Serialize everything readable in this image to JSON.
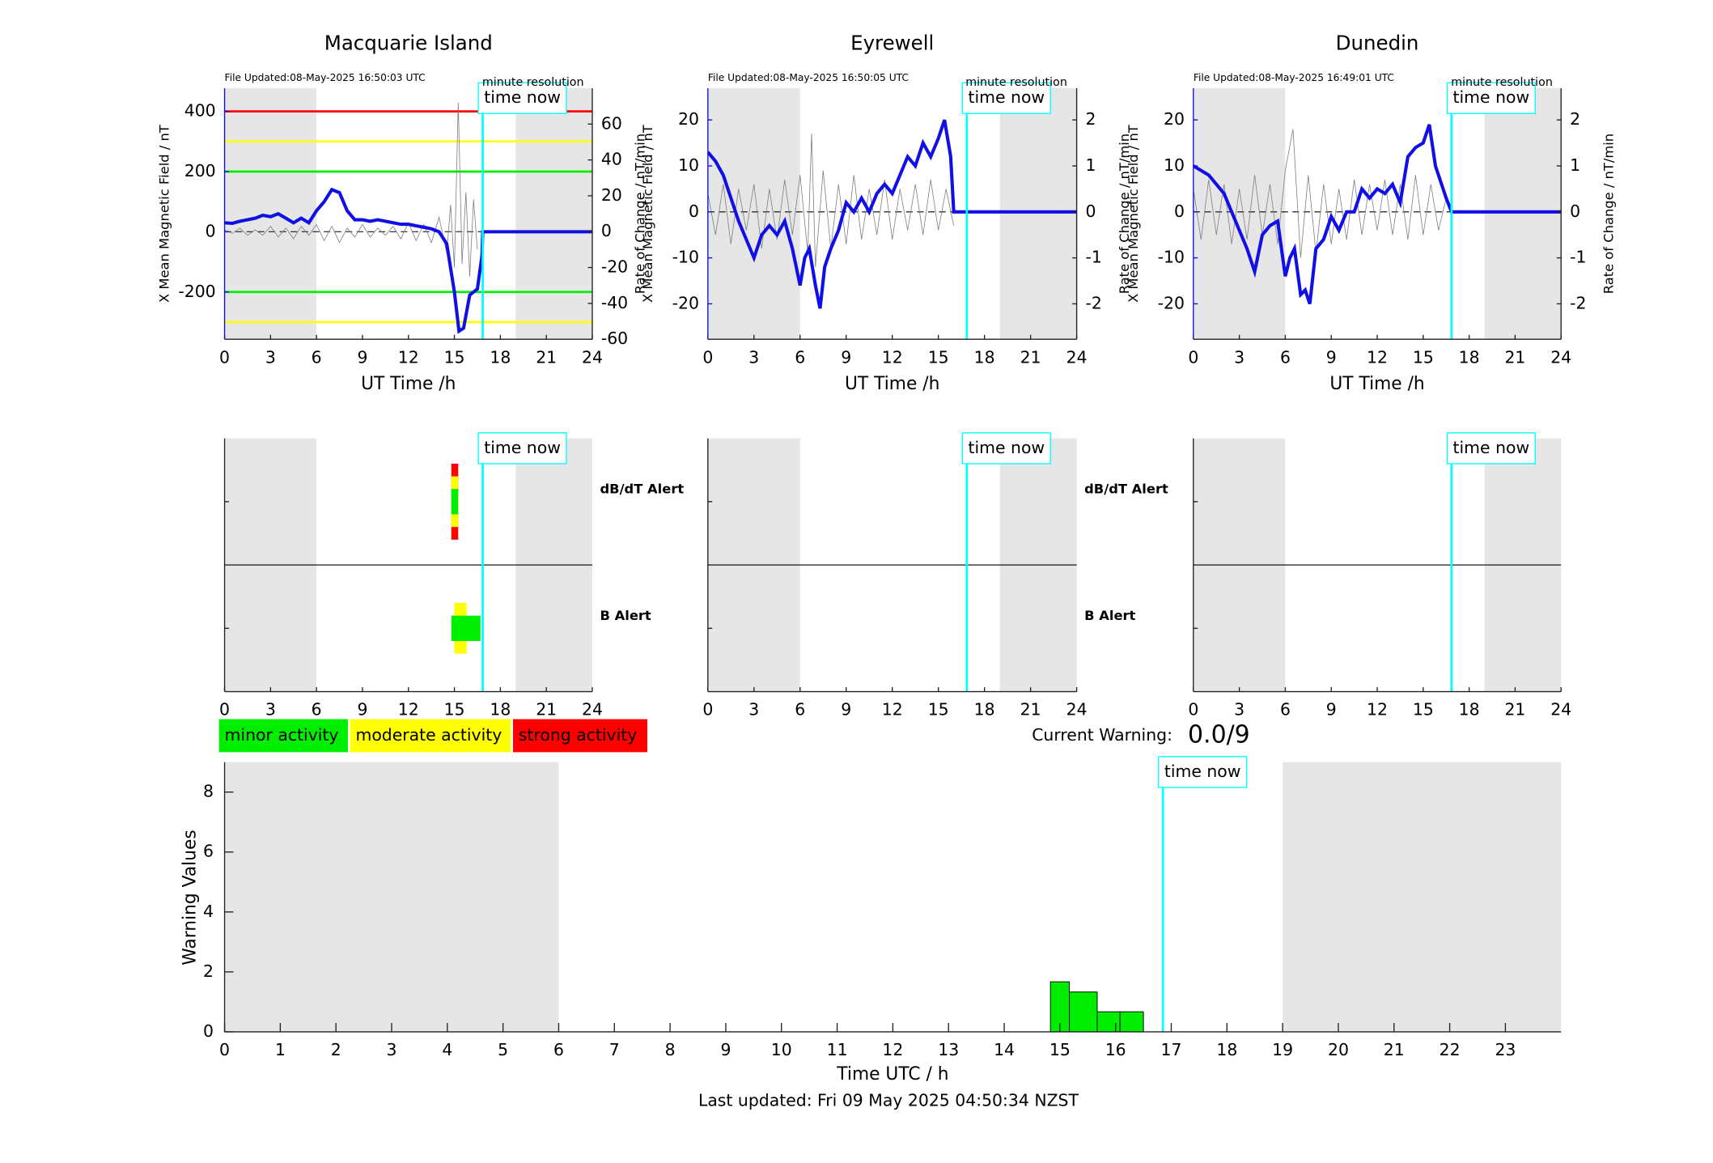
{
  "chart_data": [
    {
      "type": "line",
      "title": "Macquarie Island",
      "subtitle": "File Updated:08-May-2025 16:50:03 UTC",
      "note": "minute resolution",
      "annotation": "time now",
      "time_now": 16.85,
      "xlabel": "UT Time /h",
      "ylabel": "X Mean Magnetic Field / nT",
      "y2label": "Rate of Change / nT/min",
      "xlim": [
        0,
        24
      ],
      "xticks": [
        0,
        3,
        6,
        9,
        12,
        15,
        18,
        21,
        24
      ],
      "ylim": [
        -357,
        477
      ],
      "yticks": [
        -200,
        0,
        200,
        400
      ],
      "y2lim": [
        -60,
        80
      ],
      "y2ticks": [
        -60,
        -40,
        -20,
        0,
        20,
        40,
        60
      ],
      "shaded": [
        [
          0,
          6
        ],
        [
          19,
          24
        ]
      ],
      "reference_line": 0,
      "thresholds": [
        {
          "value": 400,
          "color": "#ff0000"
        },
        {
          "value": 300,
          "color": "#ffff00"
        },
        {
          "value": 200,
          "color": "#00ee00"
        },
        {
          "value": -200,
          "color": "#00ee00"
        },
        {
          "value": -300,
          "color": "#ffff00"
        }
      ],
      "series": [
        {
          "color": "#808080",
          "axis": "y2",
          "x": [
            0,
            0.5,
            1,
            1.5,
            2,
            2.5,
            3,
            3.5,
            4,
            4.5,
            5,
            5.5,
            6,
            6.5,
            7,
            7.5,
            8,
            8.5,
            9,
            9.5,
            10,
            10.5,
            11,
            11.5,
            12,
            12.5,
            13,
            13.5,
            14,
            14.5,
            14.75,
            15,
            15.25,
            15.5,
            15.75,
            16,
            16.25,
            16.5
          ],
          "values": [
            1,
            -1,
            2,
            -2,
            1,
            -2,
            3,
            -3,
            2,
            -4,
            3,
            -2,
            4,
            -5,
            3,
            -6,
            2,
            -3,
            4,
            -3,
            2,
            -2,
            3,
            -4,
            5,
            -5,
            4,
            -6,
            8,
            -12,
            15,
            -20,
            72,
            -18,
            22,
            -25,
            18,
            -10
          ]
        },
        {
          "color": "#1010e6",
          "axis": "y",
          "x": [
            0,
            0.5,
            1,
            1.5,
            2,
            2.5,
            3,
            3.5,
            4,
            4.5,
            5,
            5.5,
            6,
            6.5,
            7,
            7.5,
            8,
            8.5,
            9,
            9.5,
            10,
            10.5,
            11,
            11.5,
            12,
            12.5,
            13,
            13.5,
            14,
            14.5,
            15,
            15.3,
            15.6,
            16,
            16.5,
            16.8,
            16.85,
            24
          ],
          "values": [
            30,
            28,
            35,
            40,
            45,
            55,
            50,
            60,
            45,
            30,
            45,
            30,
            70,
            100,
            140,
            130,
            70,
            40,
            40,
            35,
            40,
            35,
            30,
            25,
            25,
            20,
            15,
            10,
            0,
            -40,
            -200,
            -330,
            -320,
            -210,
            -190,
            -80,
            0,
            0
          ]
        }
      ]
    },
    {
      "type": "line",
      "title": "Eyrewell",
      "subtitle": "File Updated:08-May-2025 16:50:05 UTC",
      "note": "minute resolution",
      "annotation": "time now",
      "time_now": 16.85,
      "xlabel": "UT Time /h",
      "ylabel": "X Mean Magnetic Field / nT",
      "y2label": "Rate of Change / nT/min",
      "xlim": [
        0,
        24
      ],
      "xticks": [
        0,
        3,
        6,
        9,
        12,
        15,
        18,
        21,
        24
      ],
      "ylim": [
        -27.7,
        26.9
      ],
      "yticks": [
        -20,
        -10,
        0,
        10,
        20
      ],
      "y2lim": [
        -2.77,
        2.69
      ],
      "y2ticks": [
        -2,
        -1,
        0,
        1,
        2
      ],
      "shaded": [
        [
          0,
          6
        ],
        [
          19,
          24
        ]
      ],
      "reference_line": 0,
      "series": [
        {
          "color": "#808080",
          "axis": "y2",
          "x": [
            0,
            0.5,
            1,
            1.5,
            2,
            2.5,
            3,
            3.5,
            4,
            4.5,
            5,
            5.5,
            6,
            6.5,
            6.75,
            7,
            7.5,
            8,
            8.5,
            9,
            9.5,
            10,
            10.5,
            11,
            11.5,
            12,
            12.5,
            13,
            13.5,
            14,
            14.5,
            15,
            15.5,
            16
          ],
          "values": [
            0.4,
            -0.5,
            0.6,
            -0.7,
            0.5,
            -0.4,
            0.6,
            -0.8,
            0.5,
            -0.6,
            0.7,
            -0.5,
            0.8,
            -0.9,
            1.7,
            -1.2,
            0.9,
            -0.8,
            0.6,
            -0.7,
            0.8,
            -0.6,
            0.5,
            -0.5,
            0.7,
            -0.6,
            0.5,
            -0.4,
            0.6,
            -0.5,
            0.7,
            -0.4,
            0.5,
            -0.3
          ]
        },
        {
          "color": "#1010e6",
          "axis": "y",
          "x": [
            0,
            0.5,
            1,
            1.5,
            2,
            2.5,
            3,
            3.5,
            4,
            4.5,
            5,
            5.5,
            6,
            6.3,
            6.6,
            7,
            7.3,
            7.6,
            8,
            8.5,
            9,
            9.5,
            10,
            10.5,
            11,
            11.5,
            12,
            12.5,
            13,
            13.5,
            14,
            14.5,
            15,
            15.4,
            15.8,
            16,
            16.85,
            24
          ],
          "values": [
            13,
            11,
            8,
            3,
            -2,
            -6,
            -10,
            -5,
            -3,
            -5,
            -2,
            -8,
            -16,
            -10,
            -8,
            -16,
            -21,
            -12,
            -8,
            -4,
            2,
            0,
            3,
            0,
            4,
            6,
            4,
            8,
            12,
            10,
            15,
            12,
            16,
            20,
            12,
            0,
            0,
            0
          ]
        }
      ]
    },
    {
      "type": "line",
      "title": "Dunedin",
      "subtitle": "File Updated:08-May-2025 16:49:01 UTC",
      "note": "minute resolution",
      "annotation": "time now",
      "time_now": 16.85,
      "xlabel": "UT Time /h",
      "ylabel": "X Mean Magnetic Field / nT",
      "y2label": "Rate of Change / nT/min",
      "xlim": [
        0,
        24
      ],
      "xticks": [
        0,
        3,
        6,
        9,
        12,
        15,
        18,
        21,
        24
      ],
      "ylim": [
        -27.7,
        26.9
      ],
      "yticks": [
        -20,
        -10,
        0,
        10,
        20
      ],
      "y2lim": [
        -2.77,
        2.69
      ],
      "y2ticks": [
        -2,
        -1,
        0,
        1,
        2
      ],
      "shaded": [
        [
          0,
          6
        ],
        [
          19,
          24
        ]
      ],
      "reference_line": 0,
      "series": [
        {
          "color": "#808080",
          "axis": "y2",
          "x": [
            0,
            0.5,
            1,
            1.5,
            2,
            2.5,
            3,
            3.5,
            4,
            4.5,
            5,
            5.5,
            6,
            6.5,
            7,
            7.5,
            8,
            8.5,
            9,
            9.5,
            10,
            10.5,
            11,
            11.5,
            12,
            12.5,
            13,
            13.5,
            14,
            14.5,
            15,
            15.5,
            16,
            16.5
          ],
          "values": [
            0.5,
            -0.6,
            0.7,
            -0.5,
            0.6,
            -0.7,
            0.5,
            -0.6,
            0.8,
            -0.5,
            0.6,
            -0.7,
            0.9,
            1.8,
            -1.0,
            0.8,
            -0.9,
            0.6,
            -0.7,
            0.5,
            -0.6,
            0.7,
            -0.5,
            0.6,
            -0.4,
            0.7,
            -0.5,
            0.6,
            -0.6,
            0.8,
            -0.5,
            0.6,
            -0.4,
            0.3
          ]
        },
        {
          "color": "#1010e6",
          "axis": "y",
          "x": [
            0,
            0.5,
            1,
            1.5,
            2,
            2.5,
            3,
            3.5,
            4,
            4.5,
            5,
            5.5,
            6,
            6.3,
            6.6,
            7,
            7.3,
            7.6,
            8,
            8.5,
            9,
            9.5,
            10,
            10.5,
            11,
            11.5,
            12,
            12.5,
            13,
            13.5,
            14,
            14.5,
            15,
            15.4,
            15.8,
            16.5,
            16.85,
            24
          ],
          "values": [
            10,
            9,
            8,
            6,
            4,
            0,
            -4,
            -8,
            -13,
            -5,
            -3,
            -2,
            -14,
            -10,
            -8,
            -18,
            -17,
            -20,
            -8,
            -6,
            -1,
            -4,
            0,
            0,
            5,
            3,
            5,
            4,
            6,
            2,
            12,
            14,
            15,
            19,
            10,
            3,
            0,
            0
          ]
        }
      ]
    },
    {
      "type": "alert",
      "annotation": "time now",
      "time_now": 16.85,
      "xlim": [
        0,
        24
      ],
      "xticks": [
        0,
        3,
        6,
        9,
        12,
        15,
        18,
        21,
        24
      ],
      "shaded": [
        [
          0,
          6
        ],
        [
          19,
          24
        ]
      ],
      "row_labels": [
        "dB/dT Alert",
        "B Alert"
      ],
      "dbdt": [
        {
          "start": 14.8,
          "end": 15.25,
          "level": 3
        },
        {
          "start": 14.8,
          "end": 15.25,
          "level": 2
        },
        {
          "start": 14.8,
          "end": 15.25,
          "level": 1
        }
      ],
      "b": [
        {
          "start": 15.0,
          "end": 15.8,
          "level": 2
        },
        {
          "start": 14.8,
          "end": 16.7,
          "level": 1
        }
      ]
    },
    {
      "type": "alert",
      "annotation": "time now",
      "time_now": 16.85,
      "xlim": [
        0,
        24
      ],
      "xticks": [
        0,
        3,
        6,
        9,
        12,
        15,
        18,
        21,
        24
      ],
      "shaded": [
        [
          0,
          6
        ],
        [
          19,
          24
        ]
      ],
      "row_labels": [
        "dB/dT Alert",
        "B Alert"
      ],
      "dbdt": [],
      "b": []
    },
    {
      "type": "alert",
      "annotation": "time now",
      "time_now": 16.85,
      "xlim": [
        0,
        24
      ],
      "xticks": [
        0,
        3,
        6,
        9,
        12,
        15,
        18,
        21,
        24
      ],
      "shaded": [
        [
          0,
          6
        ],
        [
          19,
          24
        ]
      ],
      "dbdt": [],
      "b": []
    },
    {
      "type": "histogram",
      "annotation": "time now",
      "time_now": 16.85,
      "xlabel": "Time UTC / h",
      "ylabel": "Warning Values",
      "color": "#00ee00",
      "xlim": [
        0,
        24
      ],
      "xticks": [
        0,
        1,
        2,
        3,
        4,
        5,
        6,
        7,
        8,
        9,
        10,
        11,
        12,
        13,
        14,
        15,
        16,
        17,
        18,
        19,
        20,
        21,
        22,
        23
      ],
      "ylim": [
        0,
        9
      ],
      "yticks": [
        0,
        2,
        4,
        6,
        8
      ],
      "shaded": [
        [
          0,
          6
        ],
        [
          19,
          24
        ]
      ],
      "bins": [
        14.83,
        15.17,
        15.67,
        16.08,
        16.5
      ],
      "values": [
        1.67,
        1.33,
        0.67,
        0.67
      ]
    }
  ],
  "activity_levels": [
    {
      "label": "minor activity",
      "color": "#00ee00"
    },
    {
      "label": "moderate activity",
      "color": "#ffff00"
    },
    {
      "label": "strong activity",
      "color": "#ff0000"
    }
  ],
  "current_warning_label": "Current Warning:",
  "current_warning": "0.0/9",
  "footer": "Last updated: Fri 09 May 2025 04:50:34 NZST"
}
